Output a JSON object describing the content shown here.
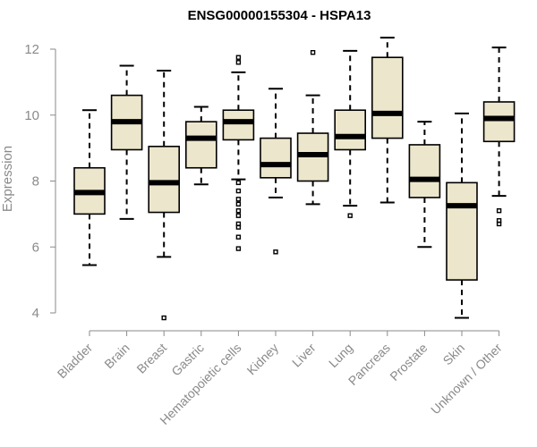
{
  "chart_data": {
    "type": "boxplot",
    "title": "ENSG00000155304 - HSPA13",
    "xlabel": "",
    "ylabel": "Expression",
    "ylim": [
      4,
      12
    ],
    "yticks": [
      4,
      6,
      8,
      10,
      12
    ],
    "grid": false,
    "categories": [
      "Bladder",
      "Brain",
      "Breast",
      "Gastric",
      "Hematopoietic cells",
      "Kidney",
      "Liver",
      "Lung",
      "Pancreas",
      "Prostate",
      "Skin",
      "Unknown / Other"
    ],
    "boxes": [
      {
        "min": 5.45,
        "q1": 7.0,
        "median": 7.65,
        "q3": 8.4,
        "max": 10.15,
        "outliers": []
      },
      {
        "min": 6.85,
        "q1": 8.95,
        "median": 9.8,
        "q3": 10.6,
        "max": 11.5,
        "outliers": []
      },
      {
        "min": 5.7,
        "q1": 7.05,
        "median": 7.95,
        "q3": 9.05,
        "max": 11.35,
        "outliers": [
          3.85
        ]
      },
      {
        "min": 7.9,
        "q1": 8.4,
        "median": 9.3,
        "q3": 9.8,
        "max": 10.25,
        "outliers": []
      },
      {
        "min": 8.05,
        "q1": 9.25,
        "median": 9.8,
        "q3": 10.15,
        "max": 11.3,
        "outliers": [
          11.6,
          11.75,
          7.95,
          7.7,
          7.45,
          7.3,
          7.1,
          6.95,
          6.7,
          6.6,
          6.3,
          5.95
        ]
      },
      {
        "min": 7.5,
        "q1": 8.1,
        "median": 8.5,
        "q3": 9.3,
        "max": 10.8,
        "outliers": [
          5.85
        ]
      },
      {
        "min": 7.3,
        "q1": 8.0,
        "median": 8.8,
        "q3": 9.45,
        "max": 10.6,
        "outliers": [
          11.9
        ]
      },
      {
        "min": 7.25,
        "q1": 8.95,
        "median": 9.35,
        "q3": 10.15,
        "max": 11.95,
        "outliers": [
          6.95
        ]
      },
      {
        "min": 7.35,
        "q1": 9.3,
        "median": 10.05,
        "q3": 11.75,
        "max": 12.35,
        "outliers": []
      },
      {
        "min": 6.0,
        "q1": 7.5,
        "median": 8.05,
        "q3": 9.1,
        "max": 9.8,
        "outliers": []
      },
      {
        "min": 3.85,
        "q1": 5.0,
        "median": 7.25,
        "q3": 7.95,
        "max": 10.05,
        "outliers": []
      },
      {
        "min": 7.55,
        "q1": 9.2,
        "median": 9.9,
        "q3": 10.4,
        "max": 12.05,
        "outliers": [
          7.1,
          6.8,
          6.7
        ]
      }
    ]
  }
}
